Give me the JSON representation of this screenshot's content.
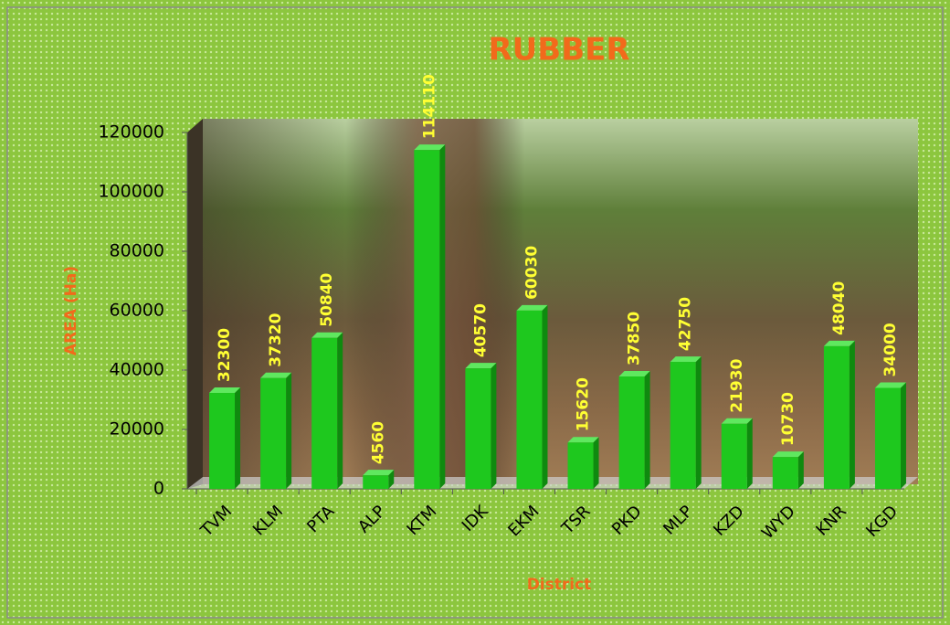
{
  "chart_data": {
    "type": "bar",
    "title": "RUBBER",
    "x_label": "District",
    "y_label": "AREA (Ha)",
    "categories": [
      "TVM",
      "KLM",
      "PTA",
      "ALP",
      "KTM",
      "IDK",
      "EKM",
      "TSR",
      "PKD",
      "MLP",
      "KZD",
      "WYD",
      "KNR",
      "KGD"
    ],
    "values": [
      32300,
      37320,
      50840,
      4560,
      114110,
      40570,
      60030,
      15620,
      37850,
      42750,
      21930,
      10730,
      48040,
      34000
    ],
    "color": "#1ec81e",
    "ylim": [
      0,
      120000
    ],
    "yticks": [
      0,
      20000,
      40000,
      60000,
      80000,
      100000,
      120000
    ]
  }
}
